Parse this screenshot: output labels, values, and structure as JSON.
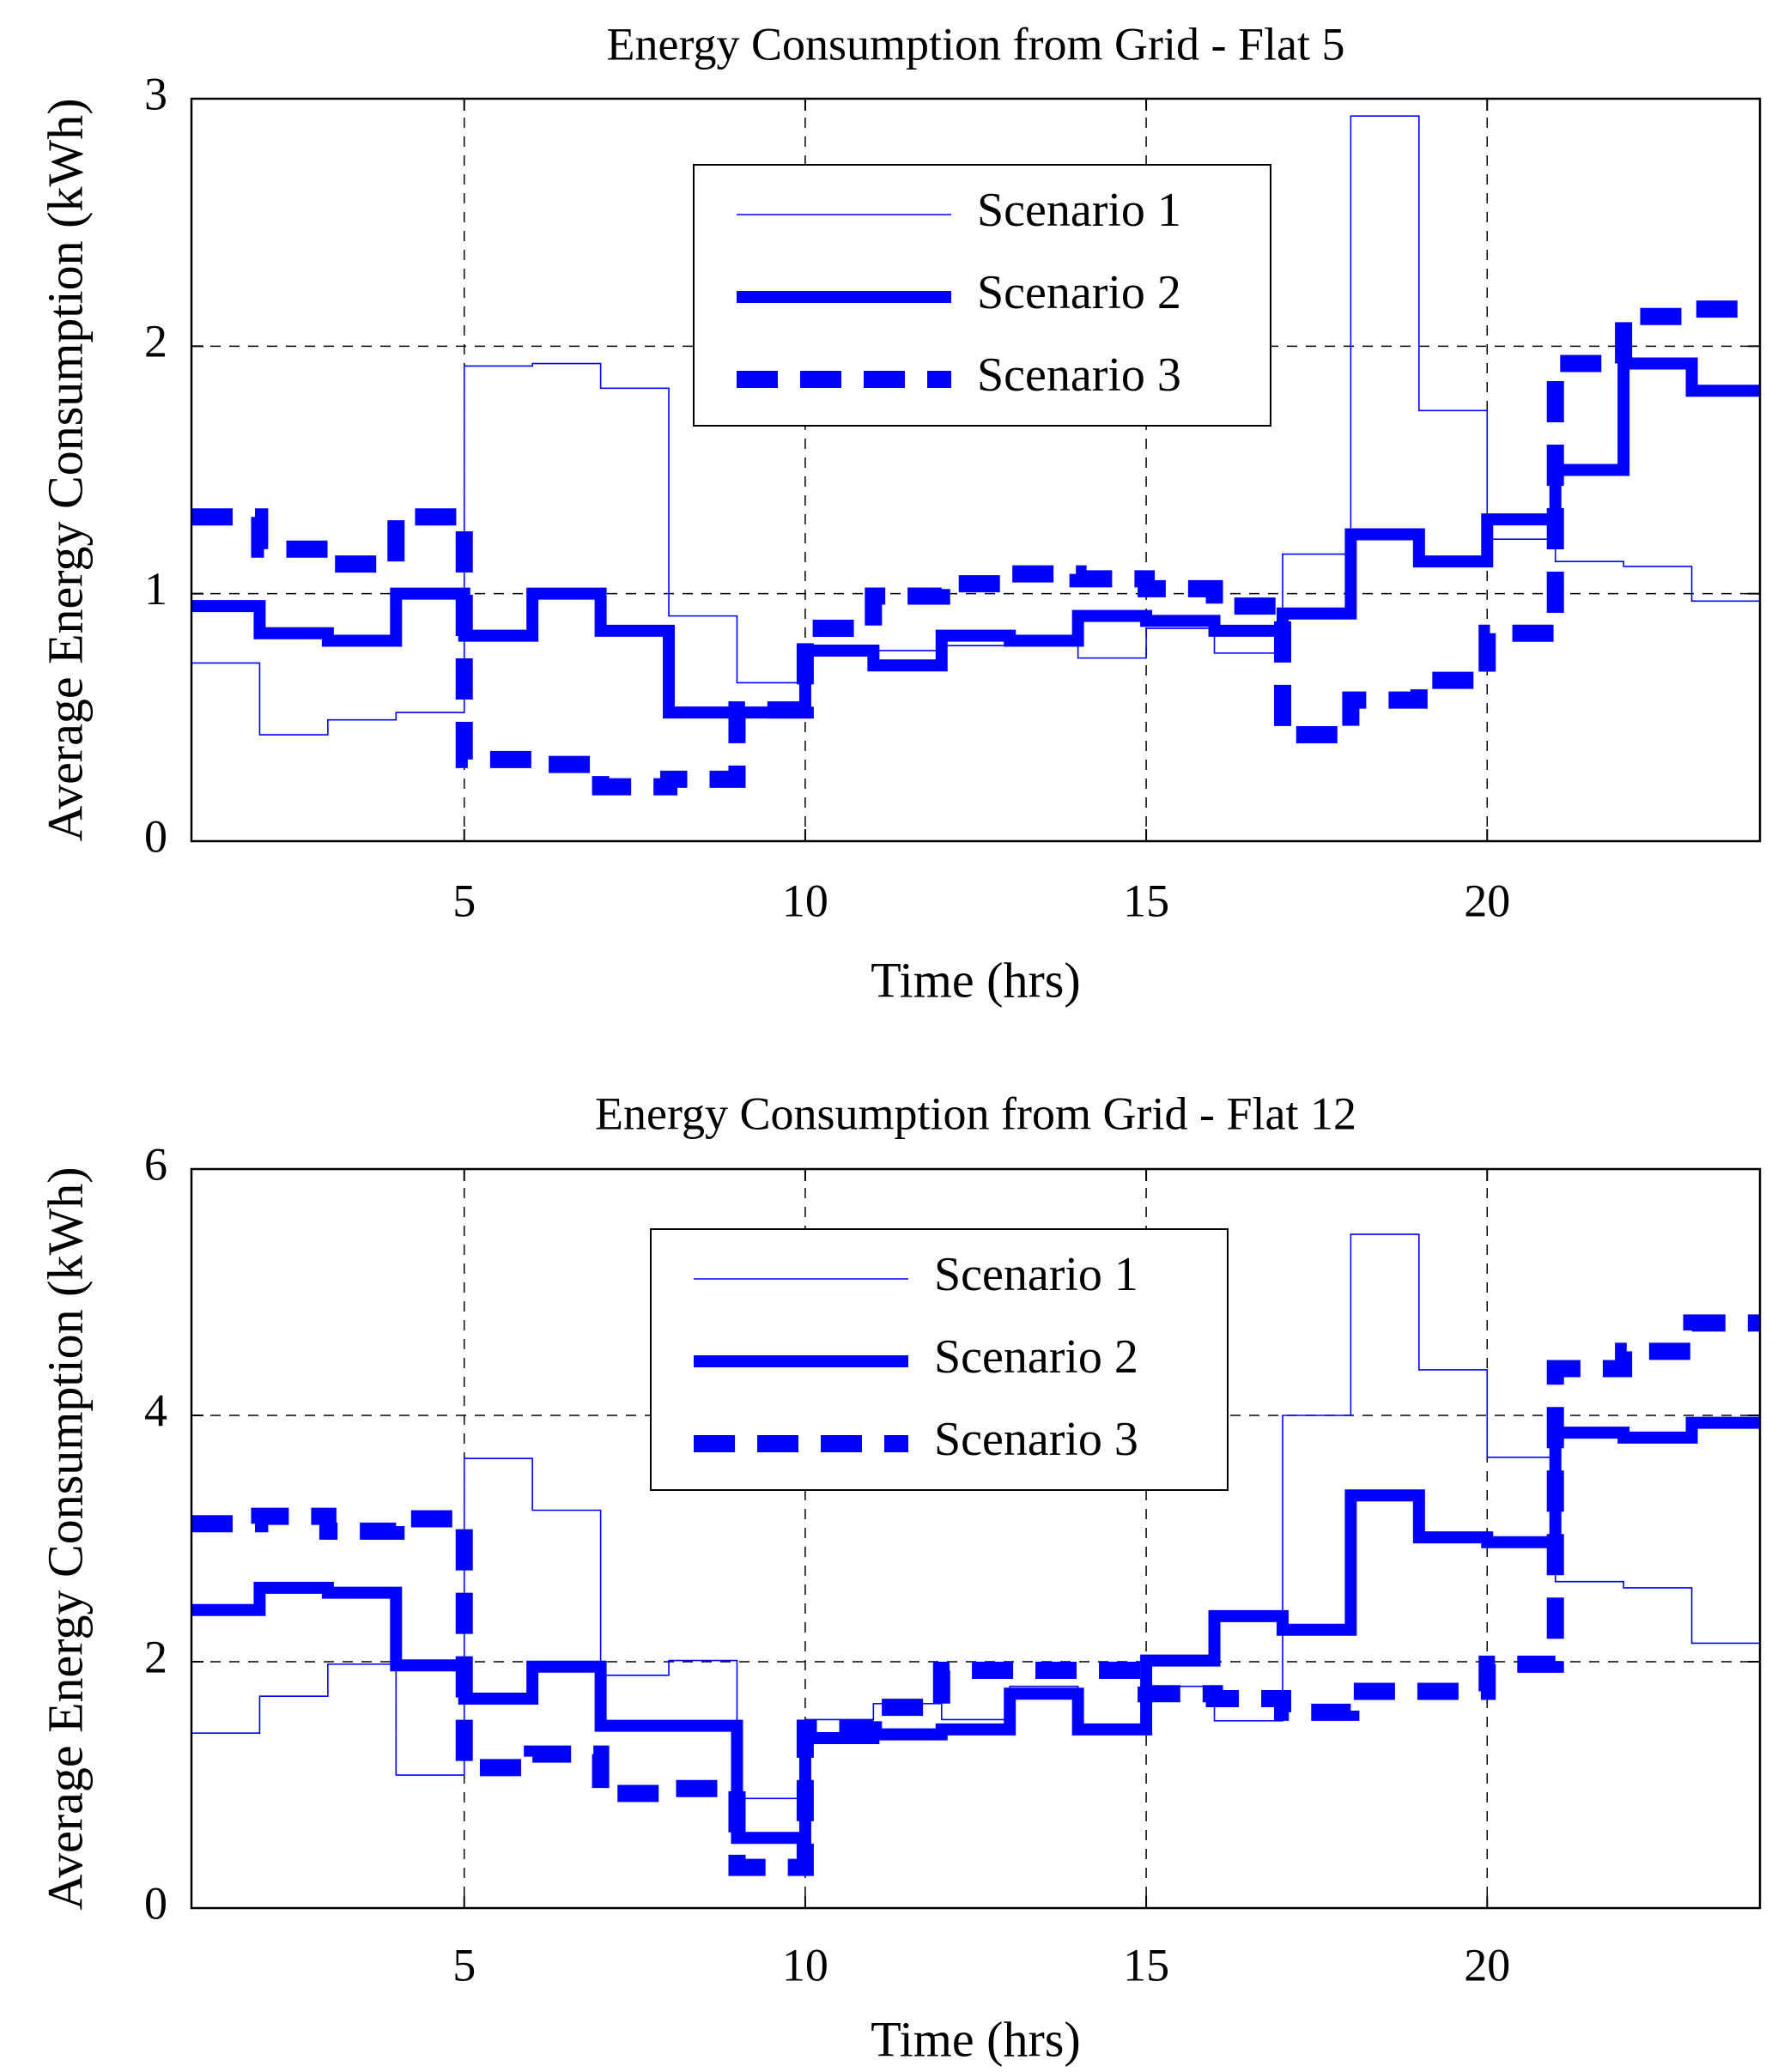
{
  "colors": {
    "series": "#0000ff",
    "axis": "#000000",
    "grid": "#000000",
    "background": "#ffffff"
  },
  "chart_data": [
    {
      "type": "line",
      "step": true,
      "title": "Energy Consumption from Grid - Flat 5",
      "xlabel": "Time (hrs)",
      "ylabel": "Average Energy Consumption (kWh)",
      "xlim": [
        1,
        24
      ],
      "ylim": [
        0,
        3
      ],
      "xticks": [
        5,
        10,
        15,
        20
      ],
      "yticks": [
        0,
        1,
        2,
        3
      ],
      "grid": true,
      "legend_position": "top-center",
      "x": [
        1,
        2,
        3,
        4,
        5,
        6,
        7,
        8,
        9,
        10,
        11,
        12,
        13,
        14,
        15,
        16,
        17,
        18,
        19,
        20,
        21,
        22,
        23,
        24
      ],
      "series": [
        {
          "name": "Scenario 1",
          "style": "thin-solid",
          "values": [
            0.72,
            0.43,
            0.49,
            0.52,
            1.92,
            1.93,
            1.83,
            0.91,
            0.64,
            0.76,
            0.77,
            0.79,
            0.79,
            0.74,
            0.86,
            0.76,
            1.16,
            2.93,
            1.74,
            1.22,
            1.13,
            1.11,
            0.97,
            0.97
          ]
        },
        {
          "name": "Scenario 2",
          "style": "thick-solid",
          "values": [
            0.95,
            0.84,
            0.81,
            1.0,
            0.83,
            1.0,
            0.85,
            0.52,
            0.52,
            0.77,
            0.71,
            0.83,
            0.81,
            0.91,
            0.89,
            0.85,
            0.92,
            1.24,
            1.13,
            1.3,
            1.5,
            1.93,
            1.82,
            1.82
          ]
        },
        {
          "name": "Scenario 3",
          "style": "thick-dashed",
          "values": [
            1.31,
            1.18,
            1.12,
            1.31,
            0.33,
            0.31,
            0.22,
            0.25,
            0.53,
            0.86,
            0.99,
            1.04,
            1.08,
            1.06,
            1.02,
            0.95,
            0.43,
            0.57,
            0.65,
            0.84,
            1.93,
            2.12,
            2.15,
            2.15
          ]
        }
      ]
    },
    {
      "type": "line",
      "step": true,
      "title": "Energy Consumption from Grid - Flat 12",
      "xlabel": "Time (hrs)",
      "ylabel": "Average Energy Consumption (kWh)",
      "xlim": [
        1,
        24
      ],
      "ylim": [
        0,
        6
      ],
      "xticks": [
        5,
        10,
        15,
        20
      ],
      "yticks": [
        0,
        2,
        4,
        6
      ],
      "grid": true,
      "legend_position": "top-center",
      "x": [
        1,
        2,
        3,
        4,
        5,
        6,
        7,
        8,
        9,
        10,
        11,
        12,
        13,
        14,
        15,
        16,
        17,
        18,
        19,
        20,
        21,
        22,
        23,
        24
      ],
      "series": [
        {
          "name": "Scenario 1",
          "style": "thin-solid",
          "values": [
            1.42,
            1.72,
            1.98,
            1.08,
            3.65,
            3.23,
            1.89,
            2.01,
            0.89,
            1.53,
            1.66,
            1.53,
            1.8,
            1.48,
            1.8,
            1.52,
            4.0,
            5.47,
            4.37,
            3.66,
            2.65,
            2.6,
            2.15,
            2.15
          ]
        },
        {
          "name": "Scenario 2",
          "style": "thick-solid",
          "values": [
            2.42,
            2.6,
            2.56,
            1.97,
            1.7,
            1.96,
            1.48,
            1.48,
            0.57,
            1.38,
            1.41,
            1.45,
            1.74,
            1.45,
            2.01,
            2.37,
            2.26,
            3.35,
            3.01,
            2.97,
            3.86,
            3.82,
            3.94,
            3.94
          ]
        },
        {
          "name": "Scenario 3",
          "style": "thick-dashed",
          "values": [
            3.12,
            3.18,
            3.06,
            3.16,
            1.14,
            1.25,
            0.93,
            0.97,
            0.33,
            1.46,
            1.63,
            1.93,
            1.93,
            1.93,
            1.74,
            1.7,
            1.59,
            1.76,
            1.76,
            1.98,
            4.38,
            4.52,
            4.75,
            4.75
          ]
        }
      ]
    }
  ]
}
